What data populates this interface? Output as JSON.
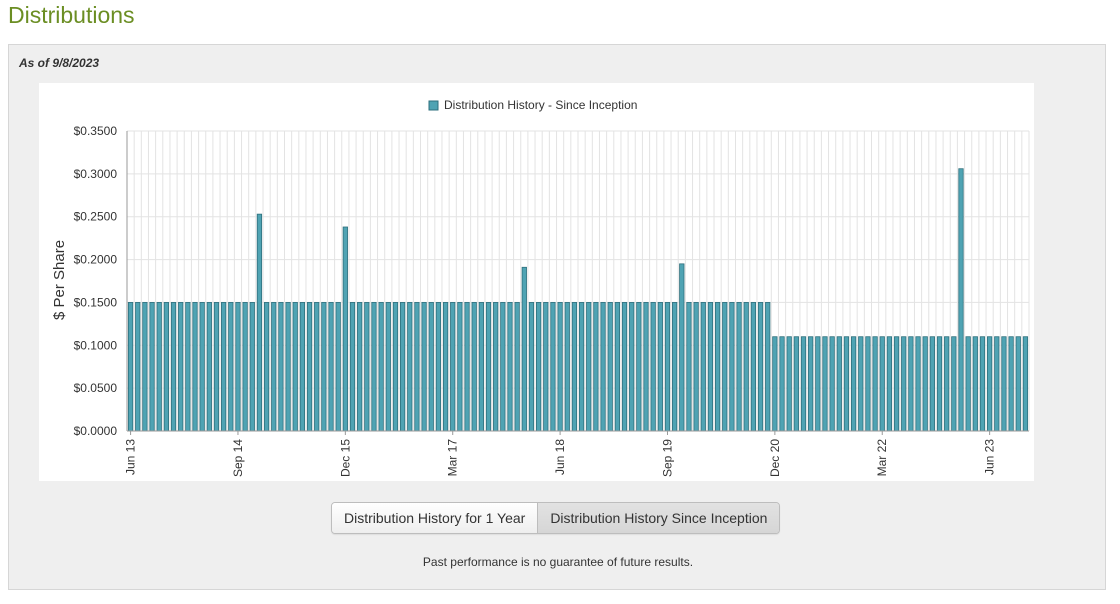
{
  "page": {
    "title": "Distributions"
  },
  "panel": {
    "as_of": "As of 9/8/2023"
  },
  "buttons": {
    "one_year": "Distribution History for 1 Year",
    "since_inception": "Distribution History Since Inception"
  },
  "disclaimer": "Past performance is no guarantee of future results.",
  "colors": {
    "bar": "#4fa3b3",
    "bar_border": "#2e6f7c",
    "title": "#6b8e23",
    "grid": "#e3e3e3"
  },
  "chart_data": {
    "type": "bar",
    "legend_label": "Distribution History - Since Inception",
    "legend_position": "top-center",
    "ylabel": "$ Per Share",
    "ylim": [
      0,
      0.35
    ],
    "y_ticks": [
      "$0.0000",
      "$0.0500",
      "$0.1000",
      "$0.1500",
      "$0.2000",
      "$0.2500",
      "$0.3000",
      "$0.3500"
    ],
    "x_tick_labels": [
      {
        "label": "Jun 13",
        "index": 0
      },
      {
        "label": "Sep 14",
        "index": 15
      },
      {
        "label": "Dec 15",
        "index": 30
      },
      {
        "label": "Mar 17",
        "index": 45
      },
      {
        "label": "Jun 18",
        "index": 60
      },
      {
        "label": "Sep 19",
        "index": 75
      },
      {
        "label": "Dec 20",
        "index": 90
      },
      {
        "label": "Mar 22",
        "index": 105
      },
      {
        "label": "Jun 23",
        "index": 120
      }
    ],
    "grid": true,
    "start_month": "Jun 13",
    "values": [
      0.15,
      0.15,
      0.15,
      0.15,
      0.15,
      0.15,
      0.15,
      0.15,
      0.15,
      0.15,
      0.15,
      0.15,
      0.15,
      0.15,
      0.15,
      0.15,
      0.15,
      0.15,
      0.253,
      0.15,
      0.15,
      0.15,
      0.15,
      0.15,
      0.15,
      0.15,
      0.15,
      0.15,
      0.15,
      0.15,
      0.238,
      0.15,
      0.15,
      0.15,
      0.15,
      0.15,
      0.15,
      0.15,
      0.15,
      0.15,
      0.15,
      0.15,
      0.15,
      0.15,
      0.15,
      0.15,
      0.15,
      0.15,
      0.15,
      0.15,
      0.15,
      0.15,
      0.15,
      0.15,
      0.15,
      0.191,
      0.15,
      0.15,
      0.15,
      0.15,
      0.15,
      0.15,
      0.15,
      0.15,
      0.15,
      0.15,
      0.15,
      0.15,
      0.15,
      0.15,
      0.15,
      0.15,
      0.15,
      0.15,
      0.15,
      0.15,
      0.15,
      0.195,
      0.15,
      0.15,
      0.15,
      0.15,
      0.15,
      0.15,
      0.15,
      0.15,
      0.15,
      0.15,
      0.15,
      0.15,
      0.11,
      0.11,
      0.11,
      0.11,
      0.11,
      0.11,
      0.11,
      0.11,
      0.11,
      0.11,
      0.11,
      0.11,
      0.11,
      0.11,
      0.11,
      0.11,
      0.11,
      0.11,
      0.11,
      0.11,
      0.11,
      0.11,
      0.11,
      0.11,
      0.11,
      0.11,
      0.306,
      0.11,
      0.11,
      0.11,
      0.11,
      0.11,
      0.11,
      0.11,
      0.11,
      0.11
    ]
  }
}
